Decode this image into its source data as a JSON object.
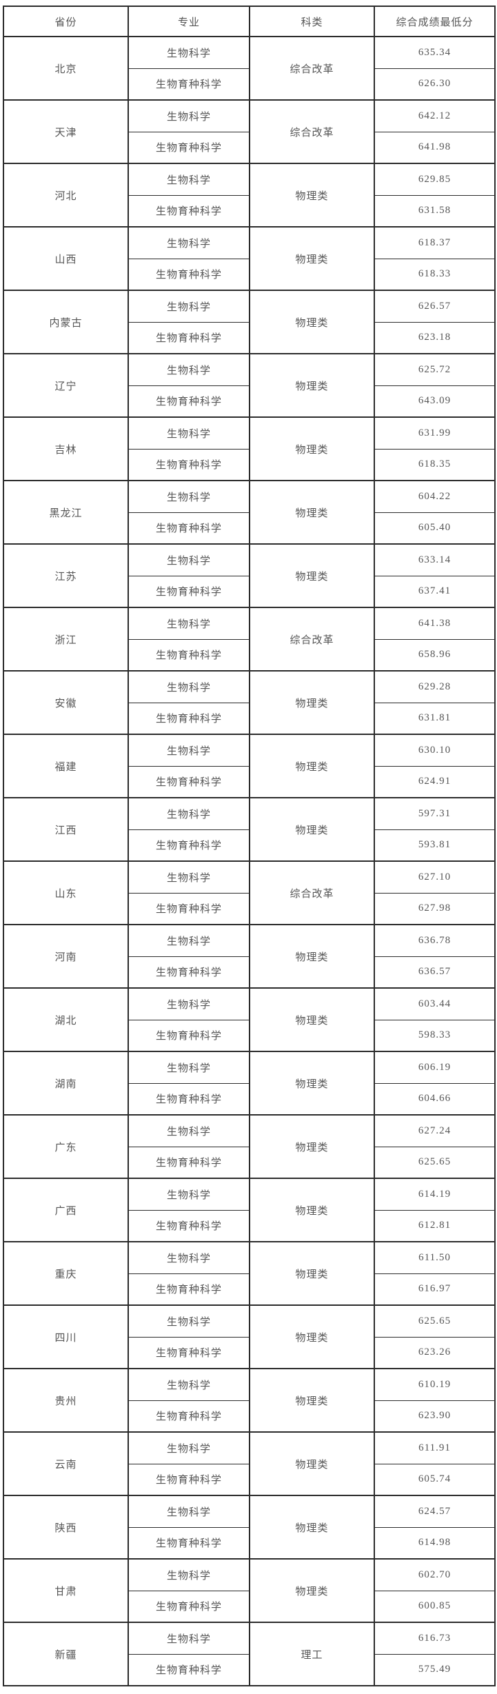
{
  "colors": {
    "border": "#2b2b2b",
    "text": "#555555",
    "score_text": "#464646",
    "background": "#ffffff"
  },
  "table": {
    "headers": [
      "省份",
      "专业",
      "科类",
      "综合成绩最低分"
    ],
    "rows": [
      {
        "province": "北京",
        "category": "综合改革",
        "majors": [
          {
            "name": "生物科学",
            "score": "635.34"
          },
          {
            "name": "生物育种科学",
            "score": "626.30"
          }
        ]
      },
      {
        "province": "天津",
        "category": "综合改革",
        "majors": [
          {
            "name": "生物科学",
            "score": "642.12"
          },
          {
            "name": "生物育种科学",
            "score": "641.98"
          }
        ]
      },
      {
        "province": "河北",
        "category": "物理类",
        "majors": [
          {
            "name": "生物科学",
            "score": "629.85"
          },
          {
            "name": "生物育种科学",
            "score": "631.58"
          }
        ]
      },
      {
        "province": "山西",
        "category": "物理类",
        "majors": [
          {
            "name": "生物科学",
            "score": "618.37"
          },
          {
            "name": "生物育种科学",
            "score": "618.33"
          }
        ]
      },
      {
        "province": "内蒙古",
        "category": "物理类",
        "majors": [
          {
            "name": "生物科学",
            "score": "626.57"
          },
          {
            "name": "生物育种科学",
            "score": "623.18"
          }
        ]
      },
      {
        "province": "辽宁",
        "category": "物理类",
        "majors": [
          {
            "name": "生物科学",
            "score": "625.72"
          },
          {
            "name": "生物育种科学",
            "score": "643.09"
          }
        ]
      },
      {
        "province": "吉林",
        "category": "物理类",
        "majors": [
          {
            "name": "生物科学",
            "score": "631.99"
          },
          {
            "name": "生物育种科学",
            "score": "618.35"
          }
        ]
      },
      {
        "province": "黑龙江",
        "category": "物理类",
        "majors": [
          {
            "name": "生物科学",
            "score": "604.22"
          },
          {
            "name": "生物育种科学",
            "score": "605.40"
          }
        ]
      },
      {
        "province": "江苏",
        "category": "物理类",
        "majors": [
          {
            "name": "生物科学",
            "score": "633.14"
          },
          {
            "name": "生物育种科学",
            "score": "637.41"
          }
        ]
      },
      {
        "province": "浙江",
        "category": "综合改革",
        "majors": [
          {
            "name": "生物科学",
            "score": "641.38"
          },
          {
            "name": "生物育种科学",
            "score": "658.96"
          }
        ]
      },
      {
        "province": "安徽",
        "category": "物理类",
        "majors": [
          {
            "name": "生物科学",
            "score": "629.28"
          },
          {
            "name": "生物育种科学",
            "score": "631.81"
          }
        ]
      },
      {
        "province": "福建",
        "category": "物理类",
        "majors": [
          {
            "name": "生物科学",
            "score": "630.10"
          },
          {
            "name": "生物育种科学",
            "score": "624.91"
          }
        ]
      },
      {
        "province": "江西",
        "category": "物理类",
        "majors": [
          {
            "name": "生物科学",
            "score": "597.31"
          },
          {
            "name": "生物育种科学",
            "score": "593.81"
          }
        ]
      },
      {
        "province": "山东",
        "category": "综合改革",
        "majors": [
          {
            "name": "生物科学",
            "score": "627.10"
          },
          {
            "name": "生物育种科学",
            "score": "627.98"
          }
        ]
      },
      {
        "province": "河南",
        "category": "物理类",
        "majors": [
          {
            "name": "生物科学",
            "score": "636.78"
          },
          {
            "name": "生物育种科学",
            "score": "636.57"
          }
        ]
      },
      {
        "province": "湖北",
        "category": "物理类",
        "majors": [
          {
            "name": "生物科学",
            "score": "603.44"
          },
          {
            "name": "生物育种科学",
            "score": "598.33"
          }
        ]
      },
      {
        "province": "湖南",
        "category": "物理类",
        "majors": [
          {
            "name": "生物科学",
            "score": "606.19"
          },
          {
            "name": "生物育种科学",
            "score": "604.66"
          }
        ]
      },
      {
        "province": "广东",
        "category": "物理类",
        "majors": [
          {
            "name": "生物科学",
            "score": "627.24"
          },
          {
            "name": "生物育种科学",
            "score": "625.65"
          }
        ]
      },
      {
        "province": "广西",
        "category": "物理类",
        "majors": [
          {
            "name": "生物科学",
            "score": "614.19"
          },
          {
            "name": "生物育种科学",
            "score": "612.81"
          }
        ]
      },
      {
        "province": "重庆",
        "category": "物理类",
        "majors": [
          {
            "name": "生物科学",
            "score": "611.50"
          },
          {
            "name": "生物育种科学",
            "score": "616.97"
          }
        ]
      },
      {
        "province": "四川",
        "category": "物理类",
        "majors": [
          {
            "name": "生物科学",
            "score": "625.65"
          },
          {
            "name": "生物育种科学",
            "score": "623.26"
          }
        ]
      },
      {
        "province": "贵州",
        "category": "物理类",
        "majors": [
          {
            "name": "生物科学",
            "score": "610.19"
          },
          {
            "name": "生物育种科学",
            "score": "623.90"
          }
        ]
      },
      {
        "province": "云南",
        "category": "物理类",
        "majors": [
          {
            "name": "生物科学",
            "score": "611.91"
          },
          {
            "name": "生物育种科学",
            "score": "605.74"
          }
        ]
      },
      {
        "province": "陕西",
        "category": "物理类",
        "majors": [
          {
            "name": "生物科学",
            "score": "624.57"
          },
          {
            "name": "生物育种科学",
            "score": "614.98"
          }
        ]
      },
      {
        "province": "甘肃",
        "category": "物理类",
        "majors": [
          {
            "name": "生物科学",
            "score": "602.70"
          },
          {
            "name": "生物育种科学",
            "score": "600.85"
          }
        ]
      },
      {
        "province": "新疆",
        "category": "理工",
        "majors": [
          {
            "name": "生物科学",
            "score": "616.73"
          },
          {
            "name": "生物育种科学",
            "score": "575.49"
          }
        ]
      }
    ]
  }
}
